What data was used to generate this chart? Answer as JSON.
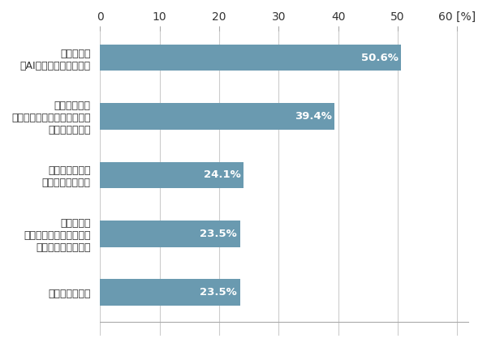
{
  "categories": [
    "医療・先進医療",
    "コンテンツ\n（映画・音楽・ゲーム・\nアニメ・漫画など）",
    "環境エネルギー\n（水素燃料など）",
    "ロボット工学\n（家庭用・産業用ロボットや\nドローンなど）",
    "知能化技術\n（AI・自動運転車など）"
  ],
  "values": [
    23.5,
    23.5,
    24.1,
    39.4,
    50.6
  ],
  "labels": [
    "23.5%",
    "23.5%",
    "24.1%",
    "39.4%",
    "50.6%"
  ],
  "bar_color": "#6a9ab0",
  "xlim": [
    0,
    62
  ],
  "xticks": [
    0,
    10,
    20,
    30,
    40,
    50,
    60
  ],
  "xlabel_suffix": "[%]",
  "bar_height": 0.45,
  "background_color": "#ffffff",
  "label_fontsize": 9,
  "tick_fontsize": 10,
  "value_fontsize": 9.5,
  "grid_color": "#cccccc",
  "text_color": "#333333"
}
